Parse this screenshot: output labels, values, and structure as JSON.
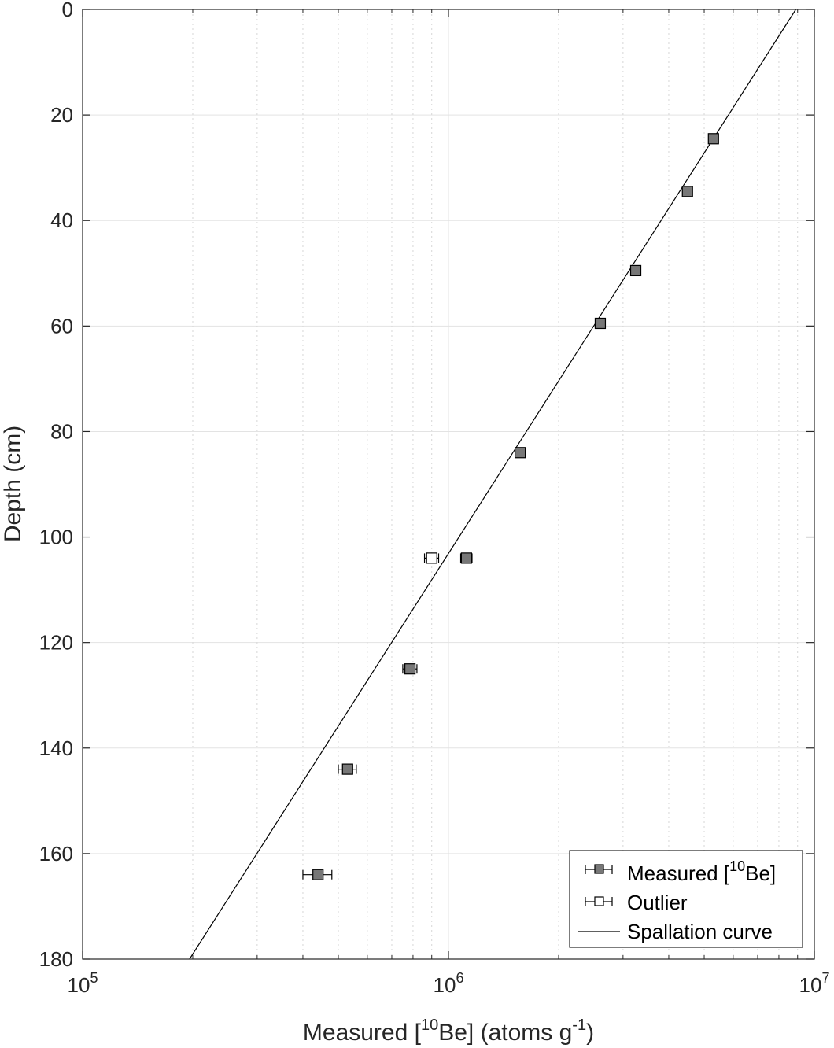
{
  "chart_data": {
    "type": "scatter",
    "xlabel": {
      "pre": "Measured [",
      "sup1": "10",
      "mid": "Be] (atoms g",
      "sup2": "-1",
      "post": ")"
    },
    "ylabel": "Depth (cm)",
    "x_scale": "log",
    "xlim": [
      100000,
      10000000
    ],
    "ylim": [
      0,
      180
    ],
    "y_reversed": true,
    "grid": true,
    "minor_grid_x": true,
    "legend_position": "bottom-right",
    "x_ticks": [
      {
        "value": 100000,
        "base": "10",
        "exp": "5"
      },
      {
        "value": 1000000,
        "base": "10",
        "exp": "6"
      },
      {
        "value": 10000000,
        "base": "10",
        "exp": "7"
      }
    ],
    "y_ticks": [
      0,
      20,
      40,
      60,
      80,
      100,
      120,
      140,
      160,
      180
    ],
    "series": [
      {
        "name": {
          "pre": "Measured [",
          "sup": "10",
          "post": "Be]"
        },
        "marker": "square-filled",
        "color": "#777777",
        "points": [
          {
            "x": 5300000,
            "y": 24.5,
            "xerr": 120000
          },
          {
            "x": 4500000,
            "y": 34.5,
            "xerr": 100000
          },
          {
            "x": 3250000,
            "y": 49.5,
            "xerr": 70000
          },
          {
            "x": 2600000,
            "y": 59.5,
            "xerr": 55000
          },
          {
            "x": 1570000,
            "y": 84,
            "xerr": 40000
          },
          {
            "x": 1120000,
            "y": 104,
            "xerr": 40000
          },
          {
            "x": 785000,
            "y": 125,
            "xerr": 35000
          },
          {
            "x": 530000,
            "y": 144,
            "xerr": 30000
          },
          {
            "x": 440000,
            "y": 164,
            "xerr": 40000
          }
        ]
      },
      {
        "name": "Outlier",
        "marker": "square-open",
        "color": "#ffffff",
        "points": [
          {
            "x": 900000,
            "y": 104,
            "xerr": 40000
          }
        ]
      },
      {
        "name": "Spallation curve",
        "marker": "line",
        "color": "#000000",
        "line": [
          {
            "x": 196000,
            "y": 180
          },
          {
            "x": 8900000,
            "y": 0
          }
        ]
      }
    ]
  }
}
